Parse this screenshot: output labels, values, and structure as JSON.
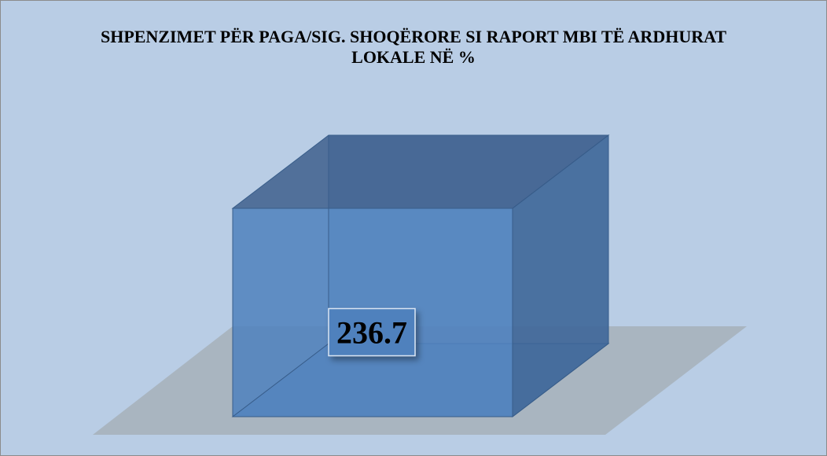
{
  "chart_data": {
    "type": "bar3d",
    "title": "SHPENZIMET PËR PAGA/SIG. SHOQËRORE SI RAPORT MBI TË ARDHURAT LOKALE NË %",
    "values": [
      236.7
    ],
    "color": "#4f81bd"
  }
}
